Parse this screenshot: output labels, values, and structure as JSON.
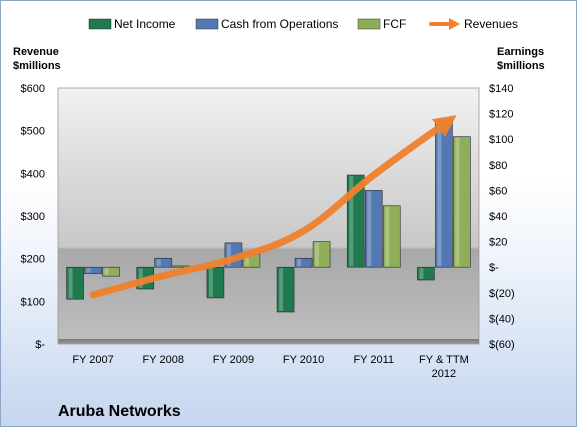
{
  "chart_data": {
    "type": "bar",
    "company": "Aruba Networks",
    "categories": [
      [
        "FY 2007"
      ],
      [
        "FY 2008"
      ],
      [
        "FY 2009"
      ],
      [
        "FY 2010"
      ],
      [
        "FY 2011"
      ],
      [
        "FY & TTM",
        "2012"
      ]
    ],
    "left_axis": {
      "title": [
        "Revenue",
        "$millions"
      ],
      "ticks": [
        "$-",
        "$100",
        "$200",
        "$300",
        "$400",
        "$500",
        "$600"
      ],
      "range": [
        0,
        600
      ]
    },
    "right_axis": {
      "title": [
        "Earnings",
        "$millions"
      ],
      "ticks": [
        "$(60)",
        "$(40)",
        "$(20)",
        "$-",
        "$20",
        "$40",
        "$60",
        "$80",
        "$100",
        "$120",
        "$140"
      ],
      "range": [
        -60,
        140
      ]
    },
    "series": [
      {
        "name": "Net Income",
        "axis": "right",
        "color": "#1f7a4f",
        "values": [
          -25,
          -17,
          -24,
          -35,
          72,
          -10
        ]
      },
      {
        "name": "Cash from Operations",
        "axis": "right",
        "color": "#5478b4",
        "values": [
          -5,
          7,
          19,
          7,
          60,
          115
        ]
      },
      {
        "name": "FCF",
        "axis": "right",
        "color": "#8fae5a",
        "values": [
          -7,
          1,
          10,
          20,
          48,
          102
        ]
      },
      {
        "name": "Revenues",
        "axis": "left",
        "type": "line",
        "color": "#f0812c",
        "values": [
          115,
          160,
          200,
          265,
          396,
          515
        ]
      }
    ],
    "legend_position": "top",
    "grid": false
  }
}
